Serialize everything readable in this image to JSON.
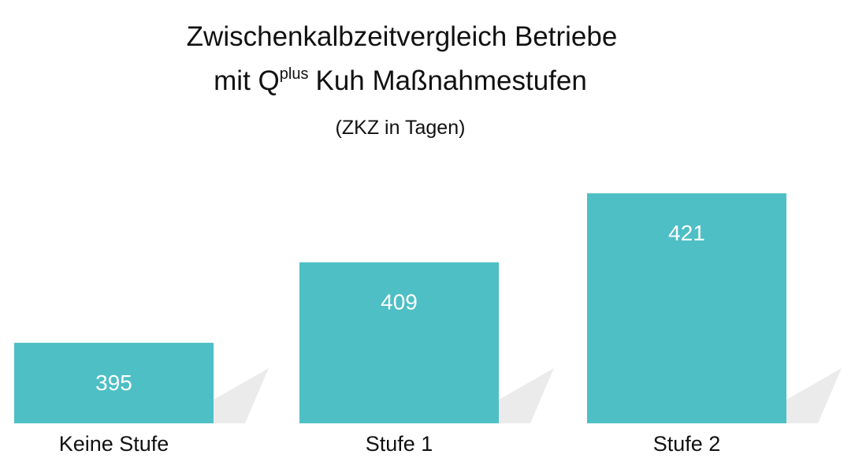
{
  "chart_data": {
    "type": "bar",
    "title": {
      "line1": "Zwischenkalbzeitvergleich Betriebe",
      "line2_start": "mit Q",
      "line2_superscript": "plus",
      "line2_end": "Kuh Maßnahmestufen"
    },
    "subtitle": "(ZKZ in Tagen)",
    "categories": [
      "Keine Stufe",
      "Stufe 1",
      "Stufe 2"
    ],
    "values": [
      395,
      409,
      421
    ],
    "color": "#4dbfc5",
    "ylim": [
      381,
      425
    ]
  }
}
